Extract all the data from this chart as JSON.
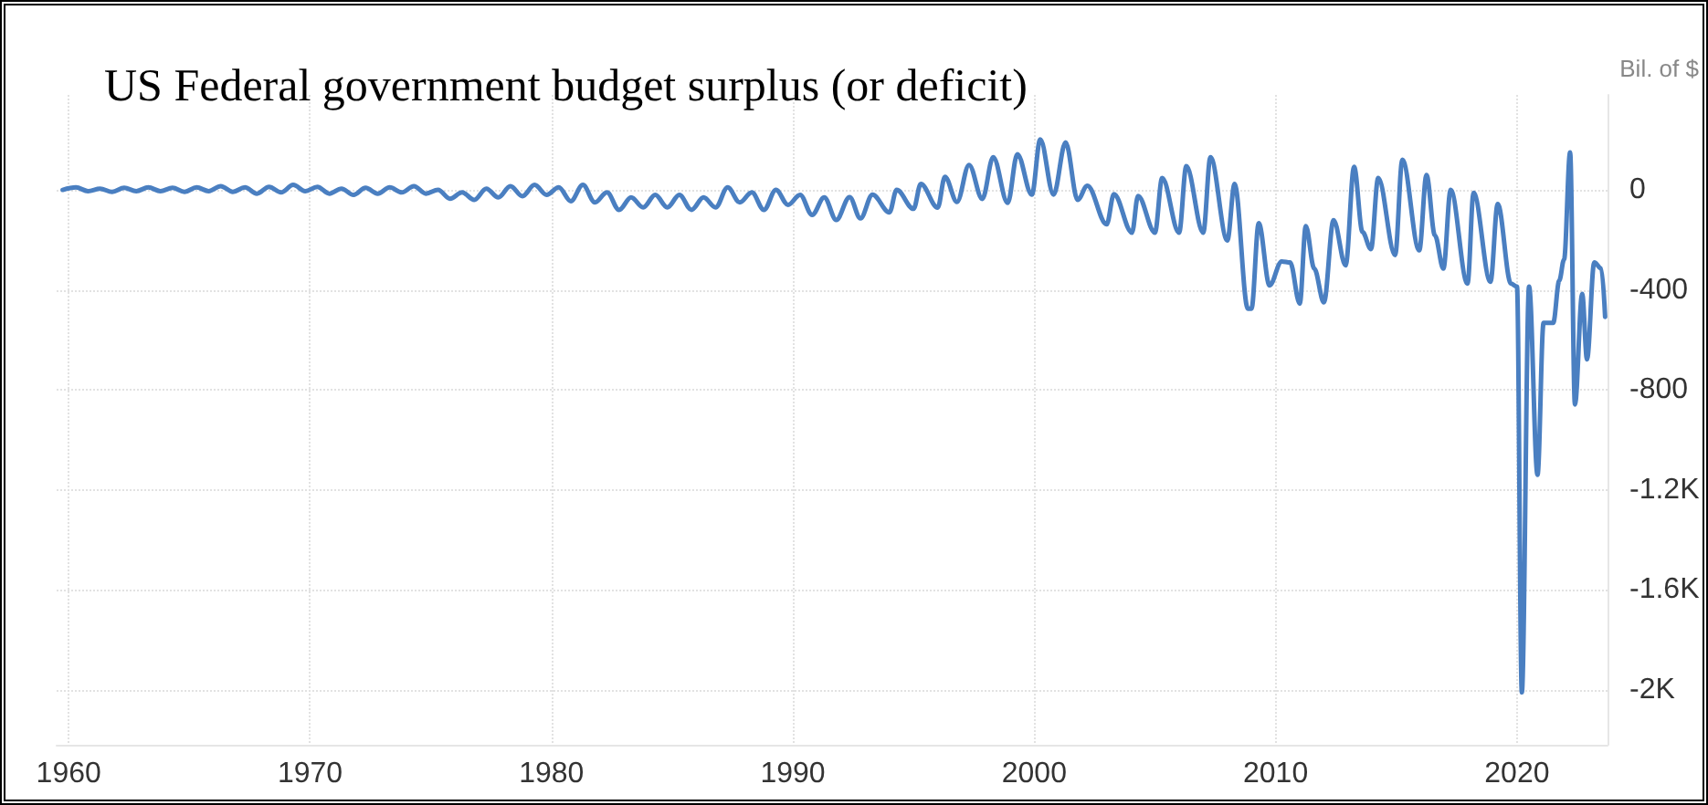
{
  "chart_data": {
    "type": "line",
    "title": "US Federal government budget surplus (or deficit)",
    "ylabel": "Bil. of $",
    "xlim": [
      1959.5,
      2023.75
    ],
    "xticks": [
      1960,
      1970,
      1980,
      1990,
      2000,
      2010,
      2020
    ],
    "ylim": [
      -2220,
      380
    ],
    "yticks": [
      0,
      -400,
      -800,
      {
        "value": -1200,
        "label": "-1.2K"
      },
      {
        "value": -1600,
        "label": "-1.6K"
      },
      {
        "value": -2000,
        "label": "-2K"
      }
    ],
    "grid": true,
    "marker": "none",
    "line_style": "solid",
    "series": [
      {
        "color": "#4a7fc1",
        "x": [
          1959.75,
          1960.3,
          1960.8,
          1961.3,
          1961.8,
          1962.3,
          1962.8,
          1963.3,
          1963.8,
          1964.3,
          1964.8,
          1965.3,
          1965.8,
          1966.3,
          1966.8,
          1967.3,
          1967.8,
          1968.3,
          1968.8,
          1969.3,
          1969.8,
          1970.3,
          1970.8,
          1971.3,
          1971.8,
          1972.3,
          1972.8,
          1973.3,
          1973.8,
          1974.3,
          1974.8,
          1975.3,
          1975.8,
          1976.3,
          1976.8,
          1977.3,
          1977.8,
          1978.3,
          1978.8,
          1979.3,
          1979.8,
          1980.3,
          1980.8,
          1981.3,
          1981.8,
          1982.3,
          1982.8,
          1983.3,
          1983.8,
          1984.3,
          1984.8,
          1985.3,
          1985.8,
          1986.3,
          1986.8,
          1987.3,
          1987.8,
          1988.3,
          1988.8,
          1989.3,
          1989.8,
          1990.3,
          1990.8,
          1991.3,
          1991.8,
          1992.35,
          1992.8,
          1993.3,
          1994.0,
          1994.3,
          1995.0,
          1995.3,
          1996.0,
          1996.3,
          1996.8,
          1997.3,
          1997.85,
          1998.3,
          1998.9,
          1999.3,
          1999.9,
          2000.25,
          2000.8,
          2001.3,
          2001.8,
          2002.2,
          2003.0,
          2003.3,
          2004.05,
          2004.3,
          2005.0,
          2005.3,
          2006.0,
          2006.3,
          2007.0,
          2007.3,
          2008.0,
          2008.3,
          2008.85,
          2009.0,
          2009.3,
          2009.75,
          2010.25,
          2010.6,
          2011.0,
          2011.25,
          2011.6,
          2012.0,
          2012.4,
          2012.9,
          2013.25,
          2013.6,
          2013.95,
          2014.25,
          2014.95,
          2015.25,
          2015.95,
          2016.25,
          2016.6,
          2016.95,
          2017.25,
          2017.95,
          2018.2,
          2018.9,
          2019.2,
          2019.75,
          2020.0,
          2020.2,
          2020.5,
          2020.85,
          2021.1,
          2021.5,
          2021.75,
          2021.95,
          2022.2,
          2022.4,
          2022.7,
          2022.9,
          2023.2,
          2023.5,
          2023.65
        ],
        "values": [
          0,
          10,
          -5,
          5,
          -8,
          8,
          -5,
          10,
          -5,
          8,
          -8,
          10,
          -5,
          15,
          -8,
          10,
          -15,
          12,
          -10,
          20,
          -5,
          12,
          -15,
          5,
          -20,
          8,
          -15,
          10,
          -10,
          15,
          -15,
          0,
          -35,
          -10,
          -40,
          5,
          -30,
          15,
          -25,
          20,
          -20,
          10,
          -45,
          20,
          -50,
          -10,
          -80,
          -30,
          -70,
          -20,
          -70,
          -20,
          -80,
          -30,
          -70,
          10,
          -50,
          -10,
          -80,
          0,
          -60,
          -20,
          -100,
          -30,
          -120,
          -29,
          -114,
          -19,
          -90,
          0,
          -76,
          24,
          -71,
          52,
          -48,
          100,
          -36,
          131,
          -52,
          143,
          -19,
          202,
          -19,
          190,
          -40,
          17,
          -138,
          -17,
          -171,
          -24,
          -171,
          48,
          -171,
          95,
          -171,
          131,
          -202,
          24,
          -475,
          -475,
          -133,
          -382,
          -286,
          -290,
          -455,
          -145,
          -315,
          -450,
          -121,
          -302,
          92,
          -169,
          -237,
          48,
          -261,
          121,
          -242,
          60,
          -182,
          -315,
          0,
          -375,
          -12,
          -368,
          -56,
          -375,
          -387,
          -2010,
          -387,
          -1140,
          -532,
          -532,
          -363,
          -278,
          150,
          -859,
          -416,
          -678,
          -290,
          -315,
          -508
        ]
      }
    ]
  }
}
